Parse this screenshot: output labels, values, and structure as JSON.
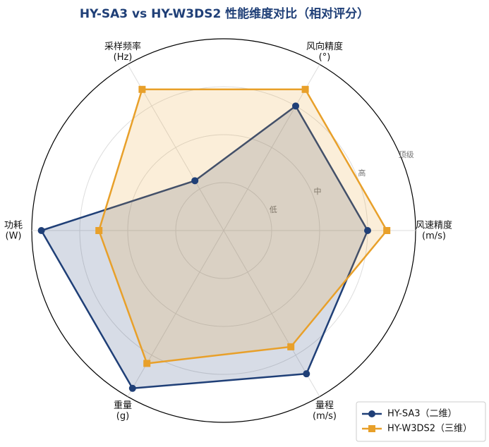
{
  "chart_data": {
    "type": "radar",
    "title": "HY-SA3 vs HY-W3DS2 性能维度对比（相对评分）",
    "categories": [
      "风速精度",
      "风向精度",
      "采样频率",
      "功耗",
      "重量",
      "量程"
    ],
    "category_units": [
      "(m/s)",
      "(°)",
      "(Hz)",
      "(W)",
      "(g)",
      "(m/s)"
    ],
    "rlim": [
      0,
      4
    ],
    "rticks": [
      {
        "value": 1,
        "label": "低"
      },
      {
        "value": 2,
        "label": "中"
      },
      {
        "value": 3,
        "label": "高"
      },
      {
        "value": 4,
        "label": "顶级"
      }
    ],
    "grid": true,
    "legend": "lower right",
    "series": [
      {
        "name": "HY-SA3（二维）",
        "color": "#1f3f77",
        "marker": "circle",
        "values": [
          3.0,
          3.0,
          1.2,
          3.8,
          3.8,
          3.45
        ]
      },
      {
        "name": "HY-W3DS2（三维）",
        "color": "#e8a02a",
        "marker": "square",
        "values": [
          3.4,
          3.4,
          3.4,
          2.6,
          3.2,
          2.8
        ]
      }
    ]
  }
}
